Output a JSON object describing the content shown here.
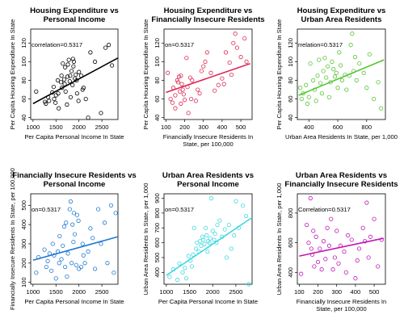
{
  "chart_data": [
    {
      "type": "scatter",
      "title": "Housing Expenditure vs\nPersonal Income",
      "xlabel": "Per Capita Personal Income In State",
      "ylabel": "Per Capita Housing Expenditure In State",
      "xlim": [
        950,
        2850
      ],
      "ylim": [
        38,
        135
      ],
      "xticks": [
        1000,
        1500,
        2000,
        2500
      ],
      "yticks": [
        40,
        60,
        80,
        100,
        120
      ],
      "color": "#000000",
      "annotation": "correlation=0.5317",
      "fit": {
        "x": [
          1000,
          2850
        ],
        "y": [
          55,
          104
        ]
      },
      "series": [
        {
          "x": [
            1070,
            1260,
            1280,
            1330,
            1350,
            1420,
            1450,
            1460,
            1490,
            1500,
            1540,
            1550,
            1560,
            1610,
            1620,
            1630,
            1650,
            1680,
            1690,
            1700,
            1710,
            1740,
            1750,
            1760,
            1780,
            1800,
            1810,
            1820,
            1840,
            1860,
            1870,
            1880,
            1890,
            1910,
            1930,
            1950,
            1960,
            1990,
            2000,
            2050,
            2080,
            2100,
            2150,
            2200,
            2250,
            2350,
            2480,
            2580,
            2650,
            2720
          ],
          "y": [
            68,
            57,
            55,
            62,
            58,
            67,
            73,
            60,
            56,
            64,
            80,
            66,
            50,
            78,
            85,
            72,
            98,
            81,
            76,
            94,
            68,
            54,
            84,
            97,
            102,
            79,
            85,
            62,
            90,
            75,
            103,
            95,
            100,
            82,
            86,
            80,
            66,
            58,
            89,
            85,
            70,
            72,
            60,
            40,
            110,
            100,
            45,
            115,
            118,
            96
          ]
        }
      ]
    },
    {
      "type": "scatter",
      "title": "Housing Expenditure vs\nFinancially Insecure Residents",
      "xlabel": "Financially Insecure Residents In\nState, per 100,000",
      "ylabel": "Per Capita Housing Expenditure In State",
      "xlim": [
        90,
        560
      ],
      "ylim": [
        38,
        135
      ],
      "xticks": [
        100,
        200,
        300,
        400,
        500
      ],
      "yticks": [
        40,
        60,
        80,
        100,
        120
      ],
      "color": "#dd2853",
      "annotation": "on=0.5317",
      "fit": {
        "x": [
          100,
          550
        ],
        "y": [
          67,
          98
        ]
      },
      "series": [
        {
          "x": [
            110,
            125,
            135,
            140,
            150,
            150,
            160,
            165,
            170,
            175,
            180,
            180,
            185,
            190,
            195,
            200,
            210,
            215,
            220,
            230,
            235,
            240,
            260,
            270,
            280,
            290,
            300,
            310,
            320,
            340,
            360,
            380,
            400,
            410,
            420,
            440,
            450,
            460,
            470,
            480,
            500,
            520,
            530
          ],
          "y": [
            88,
            60,
            56,
            72,
            64,
            50,
            80,
            78,
            84,
            68,
            85,
            55,
            76,
            70,
            65,
            59,
            104,
            73,
            45,
            83,
            60,
            80,
            58,
            70,
            66,
            90,
            95,
            100,
            110,
            88,
            69,
            75,
            82,
            76,
            110,
            99,
            86,
            120,
            130,
            115,
            105,
            125,
            100
          ]
        }
      ]
    },
    {
      "type": "scatter",
      "title": "Housing Expenditure vs\nUrban Area Residents",
      "xlabel": "Urban Area Residents In State, per 1,000",
      "ylabel": "Per Capita Housing Expenditure In State",
      "xlim": [
        320,
        930
      ],
      "ylim": [
        38,
        135
      ],
      "xticks": [
        400,
        600,
        800
      ],
      "yticks": [
        40,
        60,
        80,
        100,
        120
      ],
      "color": "#55c433",
      "annotation": "rrelation=0.5317",
      "fit": {
        "x": [
          330,
          920
        ],
        "y": [
          64,
          102
        ]
      },
      "series": [
        {
          "x": [
            340,
            350,
            360,
            380,
            390,
            400,
            410,
            430,
            440,
            450,
            460,
            470,
            480,
            490,
            500,
            510,
            520,
            530,
            540,
            550,
            560,
            570,
            580,
            590,
            600,
            610,
            620,
            630,
            650,
            660,
            680,
            690,
            700,
            710,
            720,
            730,
            750,
            780,
            800,
            820,
            850,
            880,
            900
          ],
          "y": [
            72,
            60,
            66,
            75,
            55,
            62,
            98,
            80,
            70,
            58,
            85,
            102,
            77,
            66,
            90,
            104,
            83,
            95,
            62,
            78,
            100,
            92,
            84,
            88,
            72,
            110,
            96,
            80,
            86,
            70,
            85,
            118,
            130,
            90,
            105,
            80,
            98,
            88,
            72,
            108,
            60,
            78,
            50
          ]
        }
      ]
    },
    {
      "type": "scatter",
      "title": "Financially Insecure Residents vs\nPersonal Income",
      "xlabel": "Per Capita Personal Income In State",
      "ylabel": "Financially Insecure Residents In State, per 100,000",
      "xlim": [
        950,
        2850
      ],
      "ylim": [
        90,
        560
      ],
      "xticks": [
        1000,
        1500,
        2000,
        2500
      ],
      "yticks": [
        100,
        200,
        300,
        400,
        500
      ],
      "color": "#1f78d1",
      "annotation": "on=0.5317",
      "fit": {
        "x": [
          1000,
          2850
        ],
        "y": [
          215,
          337
        ]
      },
      "series": [
        {
          "x": [
            1070,
            1120,
            1250,
            1290,
            1320,
            1360,
            1400,
            1430,
            1460,
            1500,
            1540,
            1570,
            1580,
            1620,
            1650,
            1680,
            1700,
            1720,
            1740,
            1760,
            1800,
            1820,
            1840,
            1860,
            1880,
            1890,
            1910,
            1940,
            1960,
            1990,
            2000,
            2050,
            2080,
            2100,
            2130,
            2200,
            2250,
            2300,
            2350,
            2420,
            2480,
            2560,
            2620,
            2700,
            2760,
            2800
          ],
          "y": [
            150,
            230,
            270,
            180,
            210,
            250,
            160,
            300,
            240,
            120,
            260,
            200,
            340,
            220,
            290,
            390,
            180,
            410,
            130,
            250,
            480,
            520,
            200,
            400,
            310,
            460,
            350,
            190,
            450,
            420,
            170,
            180,
            300,
            240,
            200,
            260,
            380,
            330,
            170,
            480,
            300,
            410,
            200,
            500,
            150,
            460
          ]
        }
      ]
    },
    {
      "type": "scatter",
      "title": "Urban Area Residents vs\nPersonal Income",
      "xlabel": "Per Capita Personal Income In State",
      "ylabel": "Urban Area Residents In State, per 1,000",
      "xlim": [
        950,
        2850
      ],
      "ylim": [
        320,
        930
      ],
      "xticks": [
        1000,
        1500,
        2000,
        2500
      ],
      "yticks": [
        400,
        500,
        600,
        700,
        800,
        900
      ],
      "color": "#3fd8df",
      "annotation": "on=0.5317",
      "fit": {
        "x": [
          1000,
          2850
        ],
        "y": [
          380,
          770
        ]
      },
      "series": [
        {
          "x": [
            1070,
            1150,
            1240,
            1280,
            1350,
            1400,
            1430,
            1480,
            1520,
            1550,
            1580,
            1600,
            1640,
            1660,
            1700,
            1730,
            1750,
            1780,
            1800,
            1820,
            1850,
            1870,
            1890,
            1900,
            1930,
            1950,
            1970,
            2000,
            2030,
            2050,
            2080,
            2100,
            2150,
            2200,
            2260,
            2300,
            2350,
            2400,
            2460,
            2500,
            2560,
            2650,
            2720,
            2780
          ],
          "y": [
            370,
            420,
            350,
            460,
            400,
            430,
            360,
            510,
            480,
            440,
            520,
            700,
            560,
            600,
            540,
            610,
            580,
            640,
            620,
            590,
            700,
            650,
            540,
            610,
            600,
            630,
            900,
            680,
            620,
            660,
            600,
            720,
            750,
            640,
            690,
            500,
            720,
            560,
            650,
            880,
            700,
            850,
            780,
            320
          ]
        }
      ]
    },
    {
      "type": "scatter",
      "title": "Urban Area Residents vs\nFinancially Insecure Residents",
      "xlabel": "Financially Insecure Residents In\nState, per 100,000",
      "ylabel": "Urban Area Residents In State, per 1,000",
      "xlim": [
        90,
        560
      ],
      "ylim": [
        320,
        930
      ],
      "xticks": [
        100,
        200,
        300,
        400,
        500
      ],
      "yticks": [
        400,
        600,
        800
      ],
      "color": "#c017b5",
      "annotation": "Correlation=0.5317",
      "fit": {
        "x": [
          100,
          550
        ],
        "y": [
          510,
          630
        ]
      },
      "series": [
        {
          "x": [
            110,
            140,
            150,
            160,
            165,
            170,
            175,
            180,
            190,
            200,
            210,
            220,
            230,
            240,
            250,
            260,
            270,
            280,
            290,
            300,
            310,
            320,
            340,
            350,
            360,
            380,
            400,
            410,
            420,
            440,
            450,
            460,
            470,
            480,
            500,
            520,
            540
          ],
          "y": [
            390,
            720,
            600,
            900,
            560,
            520,
            680,
            440,
            640,
            470,
            560,
            420,
            610,
            490,
            700,
            580,
            760,
            420,
            500,
            680,
            460,
            580,
            540,
            400,
            650,
            620,
            360,
            480,
            560,
            700,
            610,
            870,
            500,
            640,
            760,
            440,
            620
          ]
        }
      ]
    }
  ]
}
